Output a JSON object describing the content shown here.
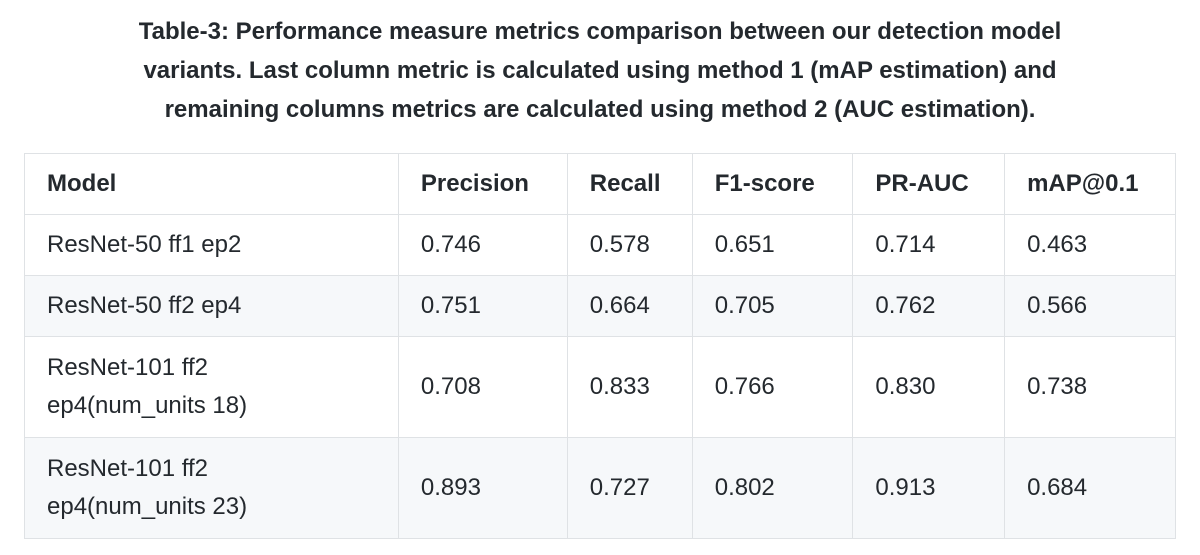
{
  "caption": {
    "line1": "Table-3: Performance measure metrics comparison between our detection model",
    "line2": "variants. Last column metric is calculated using method 1 (mAP estimation) and",
    "line3": "remaining columns metrics are calculated using method 2 (AUC estimation)."
  },
  "table": {
    "headers": [
      "Model",
      "Precision",
      "Recall",
      "F1-score",
      "PR-AUC",
      "mAP@0.1"
    ],
    "rows": [
      {
        "model_lines": [
          "ResNet-50 ff1 ep2"
        ],
        "precision": "0.746",
        "recall": "0.578",
        "f1": "0.651",
        "pr_auc": "0.714",
        "map": "0.463"
      },
      {
        "model_lines": [
          "ResNet-50 ff2 ep4"
        ],
        "precision": "0.751",
        "recall": "0.664",
        "f1": "0.705",
        "pr_auc": "0.762",
        "map": "0.566"
      },
      {
        "model_lines": [
          "ResNet-101 ff2",
          "ep4(num_units 18)"
        ],
        "precision": "0.708",
        "recall": "0.833",
        "f1": "0.766",
        "pr_auc": "0.830",
        "map": "0.738"
      },
      {
        "model_lines": [
          "ResNet-101 ff2",
          "ep4(num_units 23)"
        ],
        "precision": "0.893",
        "recall": "0.727",
        "f1": "0.802",
        "pr_auc": "0.913",
        "map": "0.684"
      }
    ]
  }
}
